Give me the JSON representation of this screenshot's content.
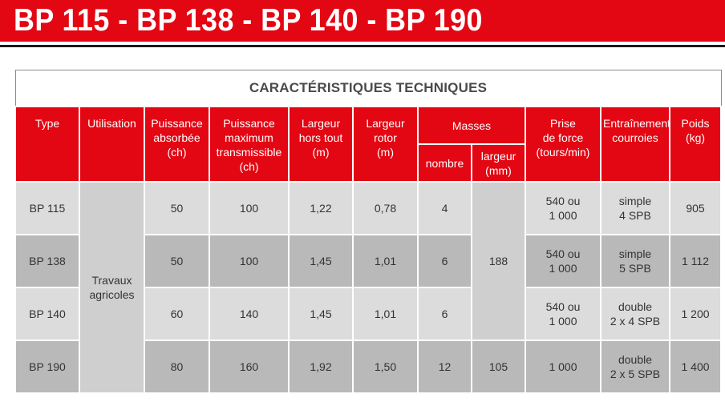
{
  "banner": {
    "title": "BP 115 - BP 138 - BP 140 - BP 190",
    "color": "#e30613"
  },
  "table": {
    "caption": "CARACTÉRISTIQUES TECHNIQUES",
    "header_color": "#e30613",
    "headers": {
      "type": "Type",
      "utilisation": "Utilisation",
      "puissance_absorbee": "Puissance\nabsorbée\n(ch)",
      "puissance_max": "Puissance\nmaximum\ntransmissible\n(ch)",
      "largeur_hors_tout": "Largeur\nhors tout\n(m)",
      "largeur_rotor": "Largeur\nrotor\n(m)",
      "masses": "Masses",
      "masses_nombre": "nombre",
      "masses_largeur": "largeur\n(mm)",
      "prise_de_force": "Prise\nde force\n(tours/min)",
      "entrainement": "Entraînement\ncourroies",
      "poids": "Poids\n(kg)"
    },
    "utilisation_value": "Travaux\nagricoles",
    "masses_largeur_shared": "188",
    "rows": [
      {
        "type": "BP 115",
        "puissance_absorbee": "50",
        "puissance_max": "100",
        "largeur_hors_tout": "1,22",
        "largeur_rotor": "0,78",
        "masses_nombre": "4",
        "prise_de_force": "540 ou\n1 000",
        "entrainement": "simple\n4 SPB",
        "poids": "905"
      },
      {
        "type": "BP 138",
        "puissance_absorbee": "50",
        "puissance_max": "100",
        "largeur_hors_tout": "1,45",
        "largeur_rotor": "1,01",
        "masses_nombre": "6",
        "prise_de_force": "540 ou\n1 000",
        "entrainement": "simple\n5 SPB",
        "poids": "1 112"
      },
      {
        "type": "BP 140",
        "puissance_absorbee": "60",
        "puissance_max": "140",
        "largeur_hors_tout": "1,45",
        "largeur_rotor": "1,01",
        "masses_nombre": "6",
        "prise_de_force": "540 ou\n1 000",
        "entrainement": "double\n2 x 4 SPB",
        "poids": "1 200"
      },
      {
        "type": "BP 190",
        "puissance_absorbee": "80",
        "puissance_max": "160",
        "largeur_hors_tout": "1,92",
        "largeur_rotor": "1,50",
        "masses_nombre": "12",
        "masses_largeur": "105",
        "prise_de_force": "1 000",
        "entrainement": "double\n2 x 5 SPB",
        "poids": "1 400"
      }
    ]
  }
}
